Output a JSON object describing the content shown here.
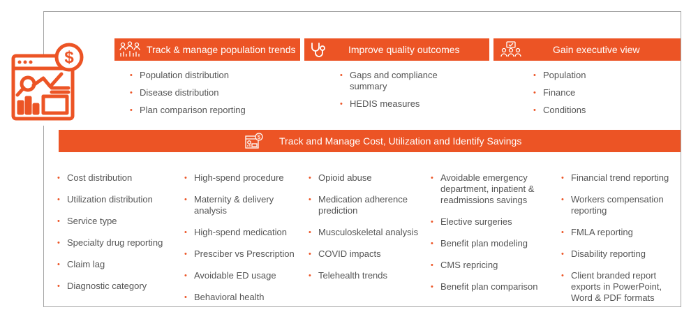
{
  "colors": {
    "accent": "#ec5425",
    "text": "#555555",
    "frame": "#a5a5a5"
  },
  "hero": {
    "icon": "dashboard-dollar-icon"
  },
  "top_sections": [
    {
      "title": "Track & manage population trends",
      "icon": "people-chart-icon",
      "items": [
        "Population distribution",
        "Disease distribution",
        "Plan comparison reporting"
      ]
    },
    {
      "title": "Improve quality outcomes",
      "icon": "stethoscope-icon",
      "items": [
        "Gaps and compliance summary",
        "HEDIS measures"
      ]
    },
    {
      "title": "Gain executive view",
      "icon": "executive-group-icon",
      "items": [
        "Population",
        "Finance",
        "Conditions"
      ]
    }
  ],
  "main_bar": {
    "title": "Track and Manage Cost, Utilization and Identify Savings",
    "icon": "cost-report-icon"
  },
  "columns": [
    [
      "Cost distribution",
      "Utilization distribution",
      "Service type",
      "Specialty drug reporting",
      "Claim lag",
      "Diagnostic category"
    ],
    [
      "High-spend procedure",
      "Maternity & delivery analysis",
      "High-spend medication",
      "Presciber vs Prescription",
      "Avoidable ED usage",
      "Behavioral health"
    ],
    [
      "Opioid abuse",
      "Medication adherence prediction",
      "Musculoskeletal analysis",
      "COVID impacts",
      "Telehealth trends"
    ],
    [
      "Avoidable emergency department, inpatient & readmissions savings",
      "Elective surgeries",
      "Benefit plan modeling",
      "CMS repricing",
      "Benefit plan comparison"
    ],
    [
      "Financial trend reporting",
      "Workers compensation reporting",
      "FMLA reporting",
      "Disability reporting",
      "Client branded report exports in PowerPoint, Word & PDF formats"
    ]
  ]
}
